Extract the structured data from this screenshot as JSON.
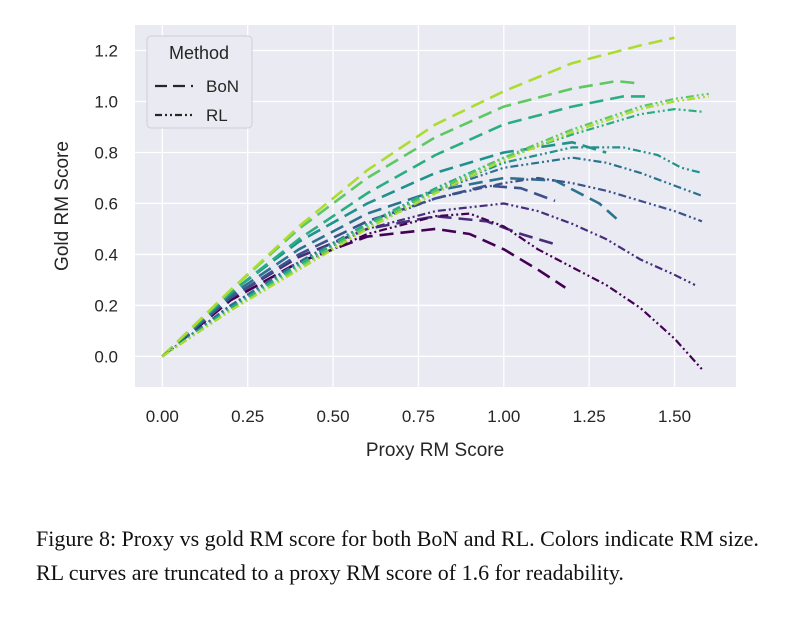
{
  "chart_data": {
    "type": "line",
    "title": "",
    "xlabel": "Proxy RM Score",
    "ylabel": "Gold RM Score",
    "xlim": [
      -0.08,
      1.68
    ],
    "ylim": [
      -0.12,
      1.3
    ],
    "xticks": [
      "0.00",
      "0.25",
      "0.50",
      "0.75",
      "1.00",
      "1.25",
      "1.50"
    ],
    "yticks": [
      "0.0",
      "0.2",
      "0.4",
      "0.6",
      "0.8",
      "1.0",
      "1.2"
    ],
    "grid": true,
    "legend": {
      "title": "Method",
      "placement": "top-left",
      "entries": [
        {
          "label": "BoN",
          "dash": "dashed"
        },
        {
          "label": "RL",
          "dash": "dashdotdot"
        }
      ]
    },
    "series": [
      {
        "method": "BoN",
        "color": "#440154",
        "points": [
          [
            0,
            0
          ],
          [
            0.2,
            0.22
          ],
          [
            0.4,
            0.37
          ],
          [
            0.6,
            0.47
          ],
          [
            0.8,
            0.5
          ],
          [
            0.9,
            0.48
          ],
          [
            1.0,
            0.42
          ],
          [
            1.1,
            0.34
          ],
          [
            1.18,
            0.27
          ]
        ]
      },
      {
        "method": "BoN",
        "color": "#472d7b",
        "points": [
          [
            0,
            0
          ],
          [
            0.2,
            0.23
          ],
          [
            0.4,
            0.39
          ],
          [
            0.6,
            0.5
          ],
          [
            0.8,
            0.55
          ],
          [
            0.95,
            0.53
          ],
          [
            1.05,
            0.48
          ],
          [
            1.15,
            0.44
          ]
        ]
      },
      {
        "method": "BoN",
        "color": "#3b528b",
        "points": [
          [
            0,
            0
          ],
          [
            0.2,
            0.23
          ],
          [
            0.4,
            0.4
          ],
          [
            0.6,
            0.53
          ],
          [
            0.8,
            0.62
          ],
          [
            0.95,
            0.67
          ],
          [
            1.05,
            0.66
          ],
          [
            1.15,
            0.61
          ]
        ]
      },
      {
        "method": "BoN",
        "color": "#2c728e",
        "points": [
          [
            0,
            0
          ],
          [
            0.2,
            0.24
          ],
          [
            0.4,
            0.42
          ],
          [
            0.6,
            0.56
          ],
          [
            0.8,
            0.65
          ],
          [
            1.0,
            0.7
          ],
          [
            1.15,
            0.69
          ],
          [
            1.28,
            0.6
          ],
          [
            1.33,
            0.54
          ]
        ]
      },
      {
        "method": "BoN",
        "color": "#21918c",
        "points": [
          [
            0,
            0
          ],
          [
            0.2,
            0.25
          ],
          [
            0.4,
            0.45
          ],
          [
            0.6,
            0.6
          ],
          [
            0.8,
            0.72
          ],
          [
            1.0,
            0.8
          ],
          [
            1.2,
            0.84
          ],
          [
            1.3,
            0.8
          ]
        ]
      },
      {
        "method": "BoN",
        "color": "#28ae80",
        "points": [
          [
            0,
            0
          ],
          [
            0.2,
            0.25
          ],
          [
            0.4,
            0.46
          ],
          [
            0.6,
            0.64
          ],
          [
            0.8,
            0.79
          ],
          [
            1.0,
            0.91
          ],
          [
            1.2,
            0.98
          ],
          [
            1.35,
            1.02
          ],
          [
            1.42,
            1.02
          ]
        ]
      },
      {
        "method": "BoN",
        "color": "#5ec962",
        "points": [
          [
            0,
            0
          ],
          [
            0.2,
            0.26
          ],
          [
            0.4,
            0.5
          ],
          [
            0.6,
            0.7
          ],
          [
            0.8,
            0.86
          ],
          [
            1.0,
            0.98
          ],
          [
            1.2,
            1.05
          ],
          [
            1.33,
            1.08
          ],
          [
            1.4,
            1.07
          ]
        ]
      },
      {
        "method": "BoN",
        "color": "#addc30",
        "points": [
          [
            0,
            0
          ],
          [
            0.2,
            0.26
          ],
          [
            0.4,
            0.51
          ],
          [
            0.6,
            0.73
          ],
          [
            0.8,
            0.91
          ],
          [
            1.0,
            1.04
          ],
          [
            1.2,
            1.15
          ],
          [
            1.4,
            1.22
          ],
          [
            1.5,
            1.25
          ]
        ]
      },
      {
        "method": "RL",
        "color": "#440154",
        "points": [
          [
            0,
            0
          ],
          [
            0.2,
            0.2
          ],
          [
            0.4,
            0.36
          ],
          [
            0.6,
            0.48
          ],
          [
            0.8,
            0.55
          ],
          [
            0.9,
            0.56
          ],
          [
            1.0,
            0.51
          ],
          [
            1.1,
            0.42
          ],
          [
            1.2,
            0.35
          ],
          [
            1.3,
            0.28
          ],
          [
            1.4,
            0.19
          ],
          [
            1.5,
            0.07
          ],
          [
            1.58,
            -0.05
          ]
        ]
      },
      {
        "method": "RL",
        "color": "#472d7b",
        "points": [
          [
            0,
            0
          ],
          [
            0.2,
            0.2
          ],
          [
            0.4,
            0.37
          ],
          [
            0.6,
            0.5
          ],
          [
            0.8,
            0.57
          ],
          [
            1.0,
            0.6
          ],
          [
            1.1,
            0.57
          ],
          [
            1.2,
            0.52
          ],
          [
            1.3,
            0.46
          ],
          [
            1.4,
            0.38
          ],
          [
            1.5,
            0.32
          ],
          [
            1.56,
            0.28
          ]
        ]
      },
      {
        "method": "RL",
        "color": "#3b528b",
        "points": [
          [
            0,
            0
          ],
          [
            0.2,
            0.2
          ],
          [
            0.4,
            0.37
          ],
          [
            0.6,
            0.52
          ],
          [
            0.8,
            0.62
          ],
          [
            1.0,
            0.68
          ],
          [
            1.1,
            0.7
          ],
          [
            1.2,
            0.68
          ],
          [
            1.3,
            0.65
          ],
          [
            1.4,
            0.61
          ],
          [
            1.5,
            0.57
          ],
          [
            1.58,
            0.53
          ]
        ]
      },
      {
        "method": "RL",
        "color": "#2c728e",
        "points": [
          [
            0,
            0
          ],
          [
            0.2,
            0.2
          ],
          [
            0.4,
            0.37
          ],
          [
            0.6,
            0.52
          ],
          [
            0.8,
            0.65
          ],
          [
            1.0,
            0.74
          ],
          [
            1.2,
            0.78
          ],
          [
            1.3,
            0.76
          ],
          [
            1.4,
            0.72
          ],
          [
            1.5,
            0.67
          ],
          [
            1.58,
            0.63
          ]
        ]
      },
      {
        "method": "RL",
        "color": "#21918c",
        "points": [
          [
            0,
            0
          ],
          [
            0.2,
            0.19
          ],
          [
            0.4,
            0.36
          ],
          [
            0.6,
            0.52
          ],
          [
            0.8,
            0.65
          ],
          [
            1.0,
            0.76
          ],
          [
            1.2,
            0.82
          ],
          [
            1.35,
            0.82
          ],
          [
            1.45,
            0.79
          ],
          [
            1.52,
            0.74
          ],
          [
            1.58,
            0.72
          ]
        ]
      },
      {
        "method": "RL",
        "color": "#28ae80",
        "points": [
          [
            0,
            0
          ],
          [
            0.2,
            0.19
          ],
          [
            0.4,
            0.36
          ],
          [
            0.6,
            0.52
          ],
          [
            0.8,
            0.66
          ],
          [
            1.0,
            0.78
          ],
          [
            1.2,
            0.87
          ],
          [
            1.4,
            0.95
          ],
          [
            1.5,
            0.97
          ],
          [
            1.58,
            0.96
          ]
        ]
      },
      {
        "method": "RL",
        "color": "#5ec962",
        "points": [
          [
            0,
            0
          ],
          [
            0.2,
            0.18
          ],
          [
            0.4,
            0.35
          ],
          [
            0.6,
            0.51
          ],
          [
            0.8,
            0.65
          ],
          [
            1.0,
            0.78
          ],
          [
            1.2,
            0.89
          ],
          [
            1.4,
            0.98
          ],
          [
            1.5,
            1.01
          ],
          [
            1.6,
            1.03
          ]
        ]
      },
      {
        "method": "RL",
        "color": "#addc30",
        "points": [
          [
            0,
            0
          ],
          [
            0.2,
            0.18
          ],
          [
            0.4,
            0.34
          ],
          [
            0.6,
            0.5
          ],
          [
            0.8,
            0.64
          ],
          [
            1.0,
            0.77
          ],
          [
            1.2,
            0.88
          ],
          [
            1.4,
            0.97
          ],
          [
            1.5,
            1.0
          ],
          [
            1.6,
            1.02
          ]
        ]
      }
    ]
  },
  "caption": {
    "text": "Figure 8: Proxy vs gold RM score for both BoN and RL. Colors indicate RM size. RL curves are truncated to a proxy RM score of 1.6 for readability."
  }
}
